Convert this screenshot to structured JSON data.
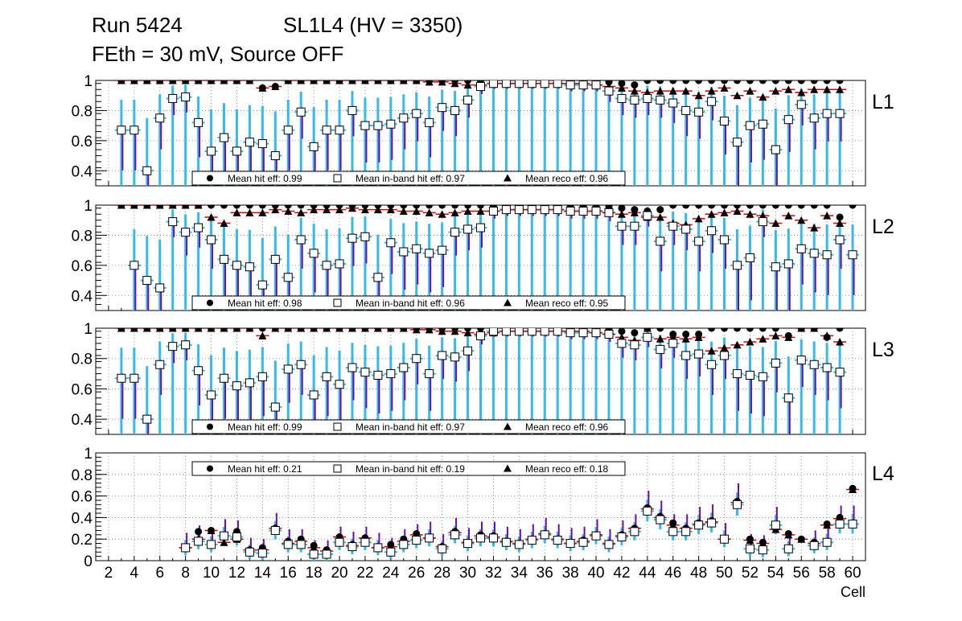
{
  "header": {
    "run": "Run 5424",
    "detector": "SL1L4 (HV = 3350)",
    "conditions": "FEth = 30 mV, Source OFF"
  },
  "colors": {
    "total_error": "#6a0dad",
    "stat_error": "#36b9ec",
    "reco_error": "#d40000",
    "marker": "#000000",
    "grid": "#777777"
  },
  "chart_data": {
    "type": "scatter",
    "xlabel": "Cell",
    "xlim": [
      1,
      61
    ],
    "x_ticks": [
      2,
      4,
      6,
      8,
      10,
      12,
      14,
      16,
      18,
      20,
      22,
      24,
      26,
      28,
      30,
      32,
      34,
      36,
      38,
      40,
      42,
      44,
      46,
      48,
      50,
      52,
      54,
      56,
      58,
      60
    ],
    "legend_labels": {
      "hit": "Mean hit  eff:",
      "inband": "Mean in-band hit eff:",
      "reco": "Mean reco eff:"
    },
    "panels": [
      {
        "label": "L1",
        "ylim": [
          0.3,
          1.0
        ],
        "y_ticks": [
          0.4,
          0.6,
          0.8,
          1
        ],
        "y_tick_labels": [
          "0.4",
          "0.6",
          "0.8",
          "1"
        ],
        "legend": {
          "hit": "0.99",
          "inband": "0.97",
          "reco": "0.96"
        },
        "cells": [
          3,
          4,
          5,
          6,
          7,
          8,
          9,
          10,
          11,
          12,
          13,
          14,
          15,
          16,
          17,
          18,
          19,
          20,
          21,
          22,
          23,
          24,
          25,
          26,
          27,
          28,
          29,
          30,
          31,
          32,
          33,
          34,
          35,
          36,
          37,
          38,
          39,
          40,
          41,
          42,
          43,
          44,
          45,
          46,
          47,
          48,
          49,
          50,
          51,
          52,
          53,
          54,
          55,
          56,
          57,
          58,
          59
        ],
        "hit_eff": [
          1,
          1,
          1,
          1,
          1,
          1,
          1,
          1,
          1,
          1,
          1,
          0.95,
          0.96,
          1,
          1,
          1,
          1,
          1,
          1,
          1,
          1,
          1,
          1,
          1,
          1,
          1,
          1,
          1,
          1,
          0.99,
          0.99,
          0.99,
          0.99,
          0.99,
          0.99,
          0.99,
          0.99,
          0.99,
          0.99,
          0.98,
          0.97,
          1,
          1,
          1,
          1,
          1,
          1,
          1,
          1,
          1,
          1,
          1,
          1,
          1,
          1,
          1,
          1
        ],
        "inband_eff": [
          0.67,
          0.67,
          0.4,
          0.75,
          0.88,
          0.89,
          0.72,
          0.53,
          0.62,
          0.53,
          0.59,
          0.58,
          0.5,
          0.67,
          0.79,
          0.56,
          0.67,
          0.67,
          0.8,
          0.7,
          0.7,
          0.71,
          0.75,
          0.78,
          0.72,
          0.82,
          0.8,
          0.87,
          0.96,
          0.98,
          0.98,
          0.98,
          0.98,
          0.98,
          0.98,
          0.97,
          0.97,
          0.97,
          0.93,
          0.88,
          0.87,
          0.88,
          0.87,
          0.85,
          0.8,
          0.79,
          0.86,
          0.73,
          0.59,
          0.7,
          0.71,
          0.54,
          0.74,
          0.84,
          0.75,
          0.78,
          0.78
        ],
        "reco_eff": [
          1,
          1,
          1,
          1,
          1,
          1,
          1,
          1,
          1,
          1,
          1,
          0.95,
          0.96,
          1,
          1,
          1,
          1,
          1,
          1,
          1,
          1,
          1,
          1,
          1,
          0.99,
          0.99,
          0.98,
          0.97,
          0.97,
          0.98,
          0.98,
          0.98,
          0.98,
          0.98,
          0.98,
          0.98,
          0.98,
          0.97,
          0.96,
          0.95,
          0.93,
          0.92,
          0.93,
          0.93,
          0.93,
          0.9,
          0.93,
          0.95,
          0.9,
          0.93,
          0.89,
          0.93,
          0.94,
          0.92,
          0.94,
          0.94,
          0.94
        ]
      },
      {
        "label": "L2",
        "ylim": [
          0.3,
          1.0
        ],
        "y_ticks": [
          0.4,
          0.6,
          0.8,
          1
        ],
        "y_tick_labels": [
          "0.4",
          "0.6",
          "0.8",
          "1"
        ],
        "legend": {
          "hit": "0.98",
          "inband": "0.96",
          "reco": "0.95"
        },
        "cells": [
          3,
          4,
          5,
          6,
          7,
          8,
          9,
          10,
          11,
          12,
          13,
          14,
          15,
          16,
          17,
          18,
          19,
          20,
          21,
          22,
          23,
          24,
          25,
          26,
          27,
          28,
          29,
          30,
          31,
          32,
          33,
          34,
          35,
          36,
          37,
          38,
          39,
          40,
          41,
          42,
          43,
          44,
          45,
          46,
          47,
          48,
          49,
          50,
          51,
          52,
          53,
          54,
          55,
          56,
          57,
          58,
          59,
          60
        ],
        "hit_eff": [
          1,
          1,
          1,
          1,
          1,
          1,
          1,
          1,
          1,
          1,
          1,
          1,
          1,
          1,
          1,
          1,
          1,
          1,
          1,
          1,
          1,
          1,
          1,
          1,
          1,
          1,
          1,
          1,
          1,
          0.99,
          0.99,
          0.99,
          0.99,
          0.99,
          0.99,
          0.99,
          0.99,
          0.99,
          0.99,
          0.98,
          0.97,
          0.96,
          0.97,
          1,
          1,
          1,
          1,
          1,
          1,
          1,
          1,
          1,
          1,
          1,
          1,
          1,
          0.92,
          1
        ],
        "inband_eff": [
          null,
          0.6,
          0.5,
          0.45,
          0.89,
          0.82,
          0.85,
          0.77,
          0.64,
          0.6,
          0.59,
          0.47,
          0.64,
          0.52,
          0.77,
          0.68,
          0.6,
          0.61,
          0.78,
          0.79,
          0.52,
          0.75,
          0.69,
          0.71,
          0.68,
          0.7,
          0.82,
          0.84,
          0.85,
          0.96,
          0.97,
          0.97,
          0.97,
          0.97,
          0.97,
          0.96,
          0.96,
          0.96,
          0.95,
          0.86,
          0.86,
          0.93,
          0.76,
          0.86,
          0.84,
          0.76,
          0.83,
          0.77,
          0.6,
          0.65,
          0.89,
          0.59,
          0.61,
          0.71,
          0.68,
          0.67,
          0.77,
          0.67
        ],
        "reco_eff": [
          1,
          1,
          1,
          1,
          1,
          1,
          1,
          0.92,
          0.88,
          0.95,
          0.95,
          0.95,
          0.97,
          0.96,
          0.95,
          0.97,
          0.97,
          0.97,
          0.98,
          0.97,
          0.97,
          0.97,
          0.96,
          0.96,
          0.95,
          0.94,
          0.95,
          0.96,
          0.96,
          0.96,
          0.97,
          0.97,
          0.97,
          0.97,
          0.97,
          0.96,
          0.96,
          0.96,
          0.95,
          0.94,
          0.95,
          0.92,
          0.92,
          0.88,
          0.87,
          0.91,
          0.94,
          0.95,
          0.96,
          0.94,
          0.93,
          0.88,
          0.93,
          0.9,
          0.85,
          0.93,
          0.88,
          null
        ]
      },
      {
        "label": "L3",
        "ylim": [
          0.3,
          1.0
        ],
        "y_ticks": [
          0.4,
          0.6,
          0.8,
          1
        ],
        "y_tick_labels": [
          "0.4",
          "0.6",
          "0.8",
          "1"
        ],
        "legend": {
          "hit": "0.99",
          "inband": "0.97",
          "reco": "0.96"
        },
        "cells": [
          3,
          4,
          5,
          6,
          7,
          8,
          9,
          10,
          11,
          12,
          13,
          14,
          15,
          16,
          17,
          18,
          19,
          20,
          21,
          22,
          23,
          24,
          25,
          26,
          27,
          28,
          29,
          30,
          31,
          32,
          33,
          34,
          35,
          36,
          37,
          38,
          39,
          40,
          41,
          42,
          43,
          44,
          45,
          46,
          47,
          48,
          49,
          50,
          51,
          52,
          53,
          54,
          55,
          56,
          57,
          58,
          59
        ],
        "hit_eff": [
          1,
          1,
          1,
          1,
          1,
          1,
          1,
          1,
          1,
          1,
          1,
          1,
          1,
          1,
          1,
          1,
          1,
          1,
          1,
          1,
          1,
          1,
          1,
          1,
          1,
          1,
          1,
          1,
          1,
          0.99,
          0.99,
          0.99,
          0.99,
          0.99,
          0.99,
          0.99,
          0.99,
          0.99,
          0.99,
          0.98,
          0.97,
          1,
          1,
          0.96,
          0.96,
          0.96,
          1,
          1,
          1,
          1,
          1,
          1,
          0.95,
          1,
          1,
          0.94,
          1
        ],
        "inband_eff": [
          0.67,
          0.67,
          0.4,
          0.76,
          0.88,
          0.89,
          0.72,
          0.56,
          0.67,
          0.62,
          0.64,
          0.68,
          0.48,
          0.73,
          0.76,
          0.56,
          0.68,
          0.63,
          0.74,
          0.71,
          0.69,
          0.7,
          0.74,
          0.8,
          0.7,
          0.82,
          0.81,
          0.85,
          0.95,
          0.98,
          0.98,
          0.98,
          0.98,
          0.98,
          0.98,
          0.97,
          0.97,
          0.97,
          0.96,
          0.9,
          0.89,
          0.94,
          0.86,
          0.9,
          0.82,
          0.83,
          0.76,
          0.82,
          0.7,
          0.69,
          0.68,
          0.77,
          0.54,
          0.79,
          0.76,
          0.74,
          0.71
        ],
        "reco_eff": [
          1,
          1,
          1,
          1,
          1,
          1,
          1,
          1,
          1,
          1,
          1,
          0.95,
          1,
          1,
          1,
          1,
          1,
          1,
          1,
          1,
          1,
          1,
          1,
          0.99,
          0.99,
          0.98,
          0.98,
          0.97,
          0.96,
          0.97,
          0.98,
          0.98,
          0.98,
          0.98,
          0.98,
          0.98,
          0.98,
          0.97,
          0.96,
          0.94,
          0.92,
          1,
          0.93,
          0.94,
          0.93,
          0.94,
          0.85,
          0.87,
          0.89,
          0.91,
          0.93,
          0.95,
          0.94,
          1,
          1,
          0.95,
          0.91
        ]
      },
      {
        "label": "L4",
        "ylim": [
          0,
          1.0
        ],
        "y_ticks": [
          0,
          0.2,
          0.4,
          0.6,
          0.8,
          1
        ],
        "y_tick_labels": [
          "0",
          "0.2",
          "0.4",
          "0.6",
          "0.8",
          "1"
        ],
        "legend": {
          "hit": "0.21",
          "inband": "0.19",
          "reco": "0.18"
        },
        "cells": [
          8,
          9,
          10,
          11,
          12,
          13,
          14,
          15,
          16,
          17,
          18,
          19,
          20,
          21,
          22,
          23,
          24,
          25,
          26,
          27,
          28,
          29,
          30,
          31,
          32,
          33,
          34,
          35,
          36,
          37,
          38,
          39,
          40,
          41,
          42,
          43,
          44,
          45,
          46,
          47,
          48,
          49,
          50,
          51,
          52,
          53,
          54,
          55,
          56,
          57,
          58,
          59,
          60
        ],
        "hit_eff": [
          0.12,
          0.27,
          0.28,
          0.23,
          0.27,
          0.1,
          0.12,
          0.3,
          0.18,
          0.2,
          0.14,
          0.1,
          0.22,
          0.15,
          0.21,
          0.13,
          0.15,
          0.2,
          0.25,
          0.22,
          0.13,
          0.27,
          0.17,
          0.24,
          0.23,
          0.18,
          0.16,
          0.2,
          0.25,
          0.2,
          0.16,
          0.19,
          0.24,
          0.16,
          0.24,
          0.3,
          0.49,
          0.41,
          0.35,
          0.3,
          0.35,
          0.37,
          0.2,
          0.55,
          0.2,
          0.17,
          0.3,
          0.25,
          0.2,
          0.17,
          0.34,
          0.4,
          0.67
        ],
        "inband_eff": [
          0.12,
          0.18,
          0.15,
          0.23,
          0.22,
          0.08,
          0.07,
          0.28,
          0.15,
          0.15,
          0.06,
          0.06,
          0.17,
          0.13,
          0.17,
          0.12,
          0.08,
          0.15,
          0.19,
          0.21,
          0.11,
          0.24,
          0.16,
          0.21,
          0.21,
          0.17,
          0.15,
          0.19,
          0.24,
          0.19,
          0.16,
          0.17,
          0.23,
          0.15,
          0.22,
          0.27,
          0.46,
          0.38,
          0.27,
          0.27,
          0.33,
          0.35,
          0.2,
          0.52,
          0.11,
          0.1,
          0.33,
          0.11,
          null,
          0.14,
          0.17,
          0.34,
          0.34
        ],
        "reco_eff": [
          0.12,
          0.2,
          0.28,
          0.17,
          0.2,
          0.1,
          0.1,
          0.3,
          0.16,
          0.18,
          0.12,
          0.09,
          0.22,
          0.14,
          0.21,
          0.12,
          0.13,
          0.18,
          0.24,
          0.21,
          0.13,
          0.26,
          0.17,
          0.23,
          0.22,
          0.18,
          0.16,
          0.2,
          0.25,
          0.2,
          0.16,
          0.18,
          0.24,
          0.16,
          0.23,
          0.3,
          0.48,
          0.4,
          0.33,
          0.3,
          0.34,
          0.36,
          0.2,
          0.54,
          0.19,
          0.16,
          0.29,
          0.24,
          0.2,
          0.16,
          0.33,
          0.39,
          0.66
        ]
      }
    ]
  }
}
